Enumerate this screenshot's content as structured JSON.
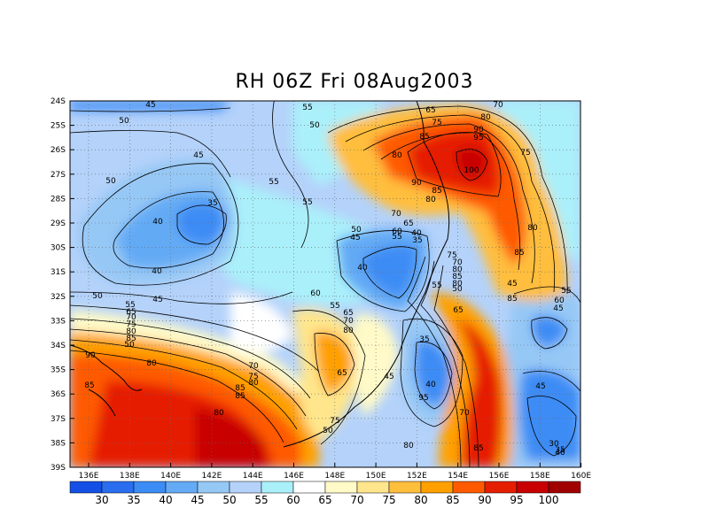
{
  "title": "RH 06Z Fri 08Aug2003",
  "lat_ticks": [
    "24S",
    "25S",
    "26S",
    "27S",
    "28S",
    "29S",
    "30S",
    "31S",
    "32S",
    "33S",
    "34S",
    "35S",
    "36S",
    "37S",
    "38S",
    "39S"
  ],
  "lon_ticks": [
    "136E",
    "138E",
    "140E",
    "142E",
    "144E",
    "146E",
    "148E",
    "150E",
    "152E",
    "154E",
    "156E",
    "158E",
    "160E"
  ],
  "colorbar": {
    "labels": [
      "30",
      "35",
      "40",
      "45",
      "50",
      "55",
      "60",
      "65",
      "70",
      "75",
      "80",
      "85",
      "90",
      "95",
      "100"
    ],
    "colors": [
      "#1450e6",
      "#2a6ef0",
      "#3c8cf5",
      "#64aaf5",
      "#96c8f5",
      "#b4d2fa",
      "#aaf0fa",
      "#ffffff",
      "#fffac8",
      "#ffe68c",
      "#ffbe3c",
      "#ffa000",
      "#ff5a00",
      "#e61e00",
      "#c80000",
      "#a00000"
    ]
  },
  "contour_labels": [
    {
      "t": "45"
    },
    {
      "t": "50"
    },
    {
      "t": "55"
    },
    {
      "t": "50"
    },
    {
      "t": "65"
    },
    {
      "t": "70"
    },
    {
      "t": "80"
    },
    {
      "t": "75"
    },
    {
      "t": "90"
    },
    {
      "t": "95"
    },
    {
      "t": "85"
    },
    {
      "t": "80"
    },
    {
      "t": "75"
    },
    {
      "t": "100"
    },
    {
      "t": "90"
    },
    {
      "t": "85"
    },
    {
      "t": "80"
    },
    {
      "t": "45"
    },
    {
      "t": "50"
    },
    {
      "t": "55"
    },
    {
      "t": "35"
    },
    {
      "t": "40"
    },
    {
      "t": "55"
    },
    {
      "t": "70"
    },
    {
      "t": "65"
    },
    {
      "t": "60"
    },
    {
      "t": "55"
    },
    {
      "t": "50"
    },
    {
      "t": "45"
    },
    {
      "t": "40"
    },
    {
      "t": "35"
    },
    {
      "t": "40"
    },
    {
      "t": "80"
    },
    {
      "t": "85"
    },
    {
      "t": "40"
    },
    {
      "t": "55"
    },
    {
      "t": "60"
    },
    {
      "t": "45"
    },
    {
      "t": "45"
    },
    {
      "t": "50"
    },
    {
      "t": "55"
    },
    {
      "t": "65"
    },
    {
      "t": "70"
    },
    {
      "t": "75"
    },
    {
      "t": "80"
    },
    {
      "t": "85"
    },
    {
      "t": "50"
    },
    {
      "t": "55"
    },
    {
      "t": "65"
    },
    {
      "t": "70"
    },
    {
      "t": "60"
    },
    {
      "t": "80"
    },
    {
      "t": "75"
    },
    {
      "t": "70"
    },
    {
      "t": "80"
    },
    {
      "t": "85"
    },
    {
      "t": "80"
    },
    {
      "t": "55"
    },
    {
      "t": "50"
    },
    {
      "t": "45"
    },
    {
      "t": "85"
    },
    {
      "t": "90"
    },
    {
      "t": "80"
    },
    {
      "t": "85"
    },
    {
      "t": "65"
    },
    {
      "t": "70"
    },
    {
      "t": "75"
    },
    {
      "t": "80"
    },
    {
      "t": "85"
    },
    {
      "t": "85"
    },
    {
      "t": "65"
    },
    {
      "t": "45"
    },
    {
      "t": "35"
    },
    {
      "t": "40"
    },
    {
      "t": "95"
    },
    {
      "t": "80"
    },
    {
      "t": "70"
    },
    {
      "t": "75"
    },
    {
      "t": "50"
    },
    {
      "t": "80"
    },
    {
      "t": "85"
    },
    {
      "t": "45"
    },
    {
      "t": "30"
    },
    {
      "t": "35"
    },
    {
      "t": "40"
    }
  ]
}
